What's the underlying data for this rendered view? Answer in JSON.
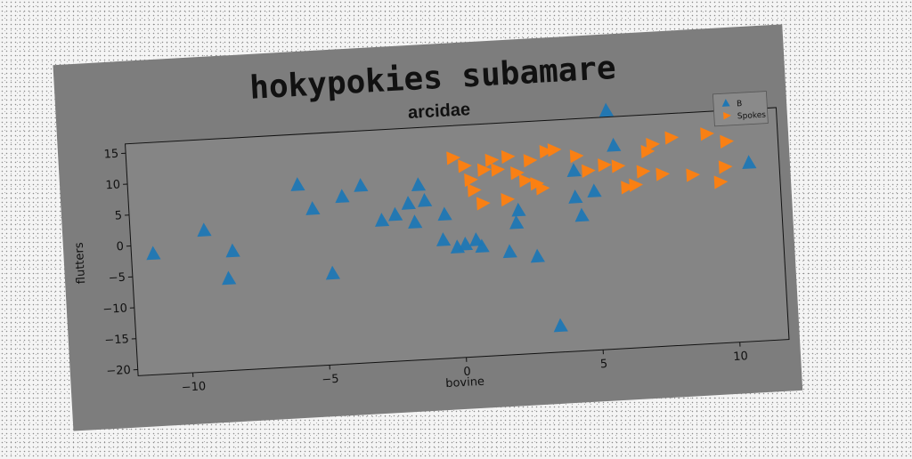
{
  "chart_data": {
    "type": "scatter",
    "suptitle": "hokypokies subamare",
    "title": "arcidae",
    "xlabel": "bovine",
    "ylabel": "flutters",
    "xlim": [
      -12,
      11.8
    ],
    "ylim": [
      -21,
      16.5
    ],
    "xticks": [
      -10,
      -5,
      0,
      5,
      10
    ],
    "yticks": [
      -20,
      -15,
      -10,
      -5,
      0,
      5,
      10,
      15
    ],
    "xtick_labels": [
      "−10",
      "−5",
      "0",
      "5",
      "10"
    ],
    "ytick_labels": [
      "−20",
      "−15",
      "−10",
      "−5",
      "0",
      "5",
      "10",
      "15"
    ],
    "legend_position": "top-right",
    "series": [
      {
        "name": "B",
        "marker": "triangle-up",
        "color": "#1f77b4",
        "points": [
          [
            -11.2,
            -1.5
          ],
          [
            -9.3,
            1.8
          ],
          [
            -8.3,
            -1.8
          ],
          [
            -8.5,
            -6.2
          ],
          [
            -5.8,
            8.3
          ],
          [
            -5.3,
            4.3
          ],
          [
            -4.7,
            -6.3
          ],
          [
            -4.2,
            6.0
          ],
          [
            -3.5,
            7.6
          ],
          [
            -2.8,
            1.8
          ],
          [
            -2.3,
            2.6
          ],
          [
            -1.8,
            4.3
          ],
          [
            -1.6,
            1.2
          ],
          [
            -1.4,
            7.2
          ],
          [
            -1.2,
            4.6
          ],
          [
            -0.6,
            -1.9
          ],
          [
            -0.5,
            2.2
          ],
          [
            -0.1,
            -3.2
          ],
          [
            0.2,
            -2.8
          ],
          [
            0.6,
            -2.2
          ],
          [
            0.8,
            -3.3
          ],
          [
            1.8,
            -4.4
          ],
          [
            2.1,
            0.2
          ],
          [
            2.2,
            2.2
          ],
          [
            2.8,
            -5.4
          ],
          [
            3.5,
            -16.8
          ],
          [
            4.3,
            3.8
          ],
          [
            4.5,
            0.8
          ],
          [
            4.3,
            8.1
          ],
          [
            5.0,
            4.6
          ],
          [
            5.6,
            17.5
          ],
          [
            5.8,
            11.8
          ],
          [
            10.7,
            7.8
          ]
        ]
      },
      {
        "name": "Spokes",
        "marker": "triangle-right",
        "color": "#ff7f0e",
        "points": [
          [
            -0.1,
            11.3
          ],
          [
            0.3,
            9.9
          ],
          [
            0.5,
            7.6
          ],
          [
            0.6,
            5.9
          ],
          [
            0.9,
            3.7
          ],
          [
            1.0,
            9.1
          ],
          [
            1.3,
            10.6
          ],
          [
            1.5,
            9.0
          ],
          [
            1.8,
            4.1
          ],
          [
            1.9,
            11.0
          ],
          [
            2.2,
            8.3
          ],
          [
            2.5,
            7.0
          ],
          [
            2.7,
            10.2
          ],
          [
            2.9,
            6.4
          ],
          [
            3.1,
            5.6
          ],
          [
            3.3,
            11.5
          ],
          [
            3.6,
            11.7
          ],
          [
            4.4,
            10.5
          ],
          [
            4.8,
            8.0
          ],
          [
            5.4,
            8.8
          ],
          [
            5.9,
            8.5
          ],
          [
            6.2,
            5.0
          ],
          [
            6.5,
            5.3
          ],
          [
            6.8,
            7.4
          ],
          [
            7.0,
            10.6
          ],
          [
            7.2,
            11.7
          ],
          [
            7.5,
            6.8
          ],
          [
            7.9,
            12.6
          ],
          [
            8.6,
            6.4
          ],
          [
            9.2,
            12.9
          ],
          [
            9.6,
            5.0
          ],
          [
            9.8,
            7.4
          ],
          [
            9.9,
            11.5
          ]
        ]
      }
    ]
  }
}
